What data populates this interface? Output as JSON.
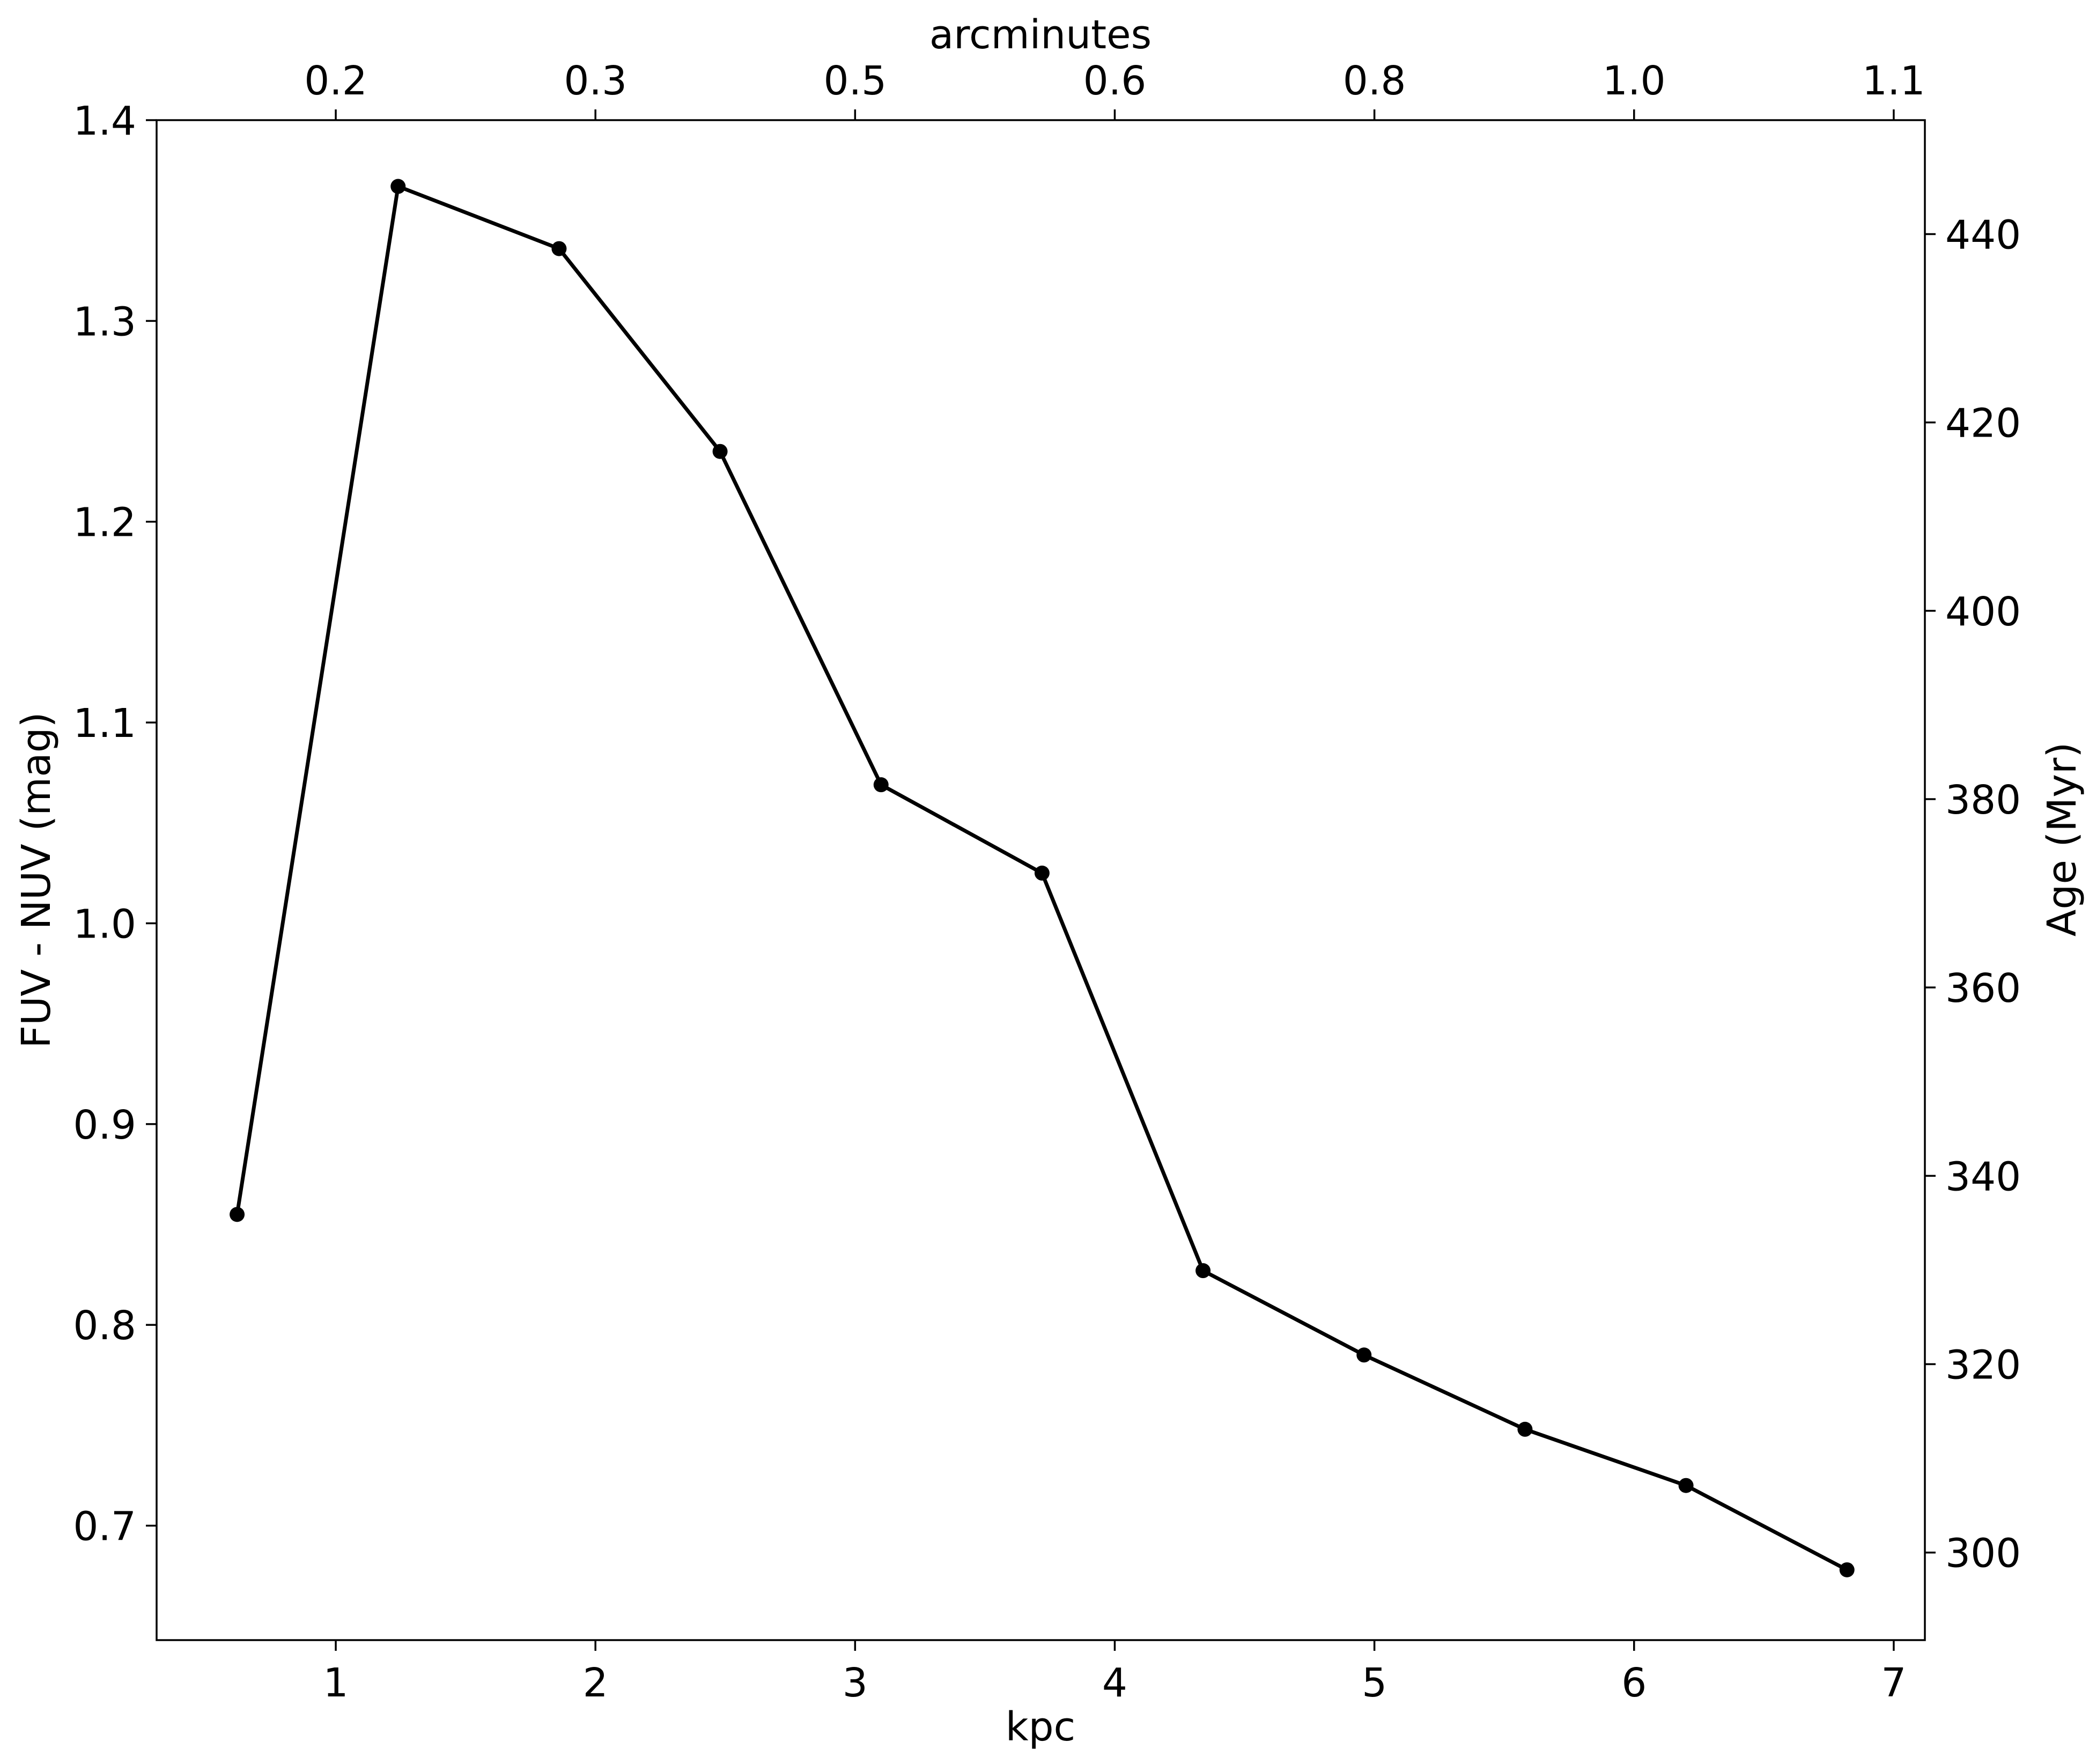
{
  "chart_data": {
    "type": "line",
    "xlabel": "kpc",
    "x2label": "arcminutes",
    "ylabel": "FUV - NUV (mag)",
    "y2label": "Age (Myr)",
    "xlim": [
      0.31,
      7.12
    ],
    "ylim": [
      0.643,
      1.4
    ],
    "y2lim": [
      290.7,
      452.1
    ],
    "grid": false,
    "x_ticks": [
      "1",
      "2",
      "3",
      "4",
      "5",
      "6",
      "7"
    ],
    "y_ticks": [
      "0.7",
      "0.8",
      "0.9",
      "1.0",
      "1.1",
      "1.2",
      "1.3",
      "1.4"
    ],
    "y2_ticks": [
      "300",
      "320",
      "340",
      "360",
      "380",
      "400",
      "420",
      "440"
    ],
    "x2_ticks": [
      {
        "x": 1.0,
        "label": "0.2"
      },
      {
        "x": 2.0,
        "label": "0.3"
      },
      {
        "x": 3.0,
        "label": "0.5"
      },
      {
        "x": 4.0,
        "label": "0.6"
      },
      {
        "x": 5.0,
        "label": "0.8"
      },
      {
        "x": 6.0,
        "label": "1.0"
      },
      {
        "x": 7.0,
        "label": "1.1"
      }
    ],
    "series": [
      {
        "color": "#000000",
        "marker": "circle",
        "x": [
          0.62,
          1.24,
          1.86,
          2.48,
          3.1,
          3.72,
          4.34,
          4.96,
          5.58,
          6.2,
          6.82
        ],
        "y": [
          0.855,
          1.367,
          1.336,
          1.235,
          1.069,
          1.025,
          0.827,
          0.785,
          0.748,
          0.72,
          0.678
        ]
      }
    ]
  }
}
